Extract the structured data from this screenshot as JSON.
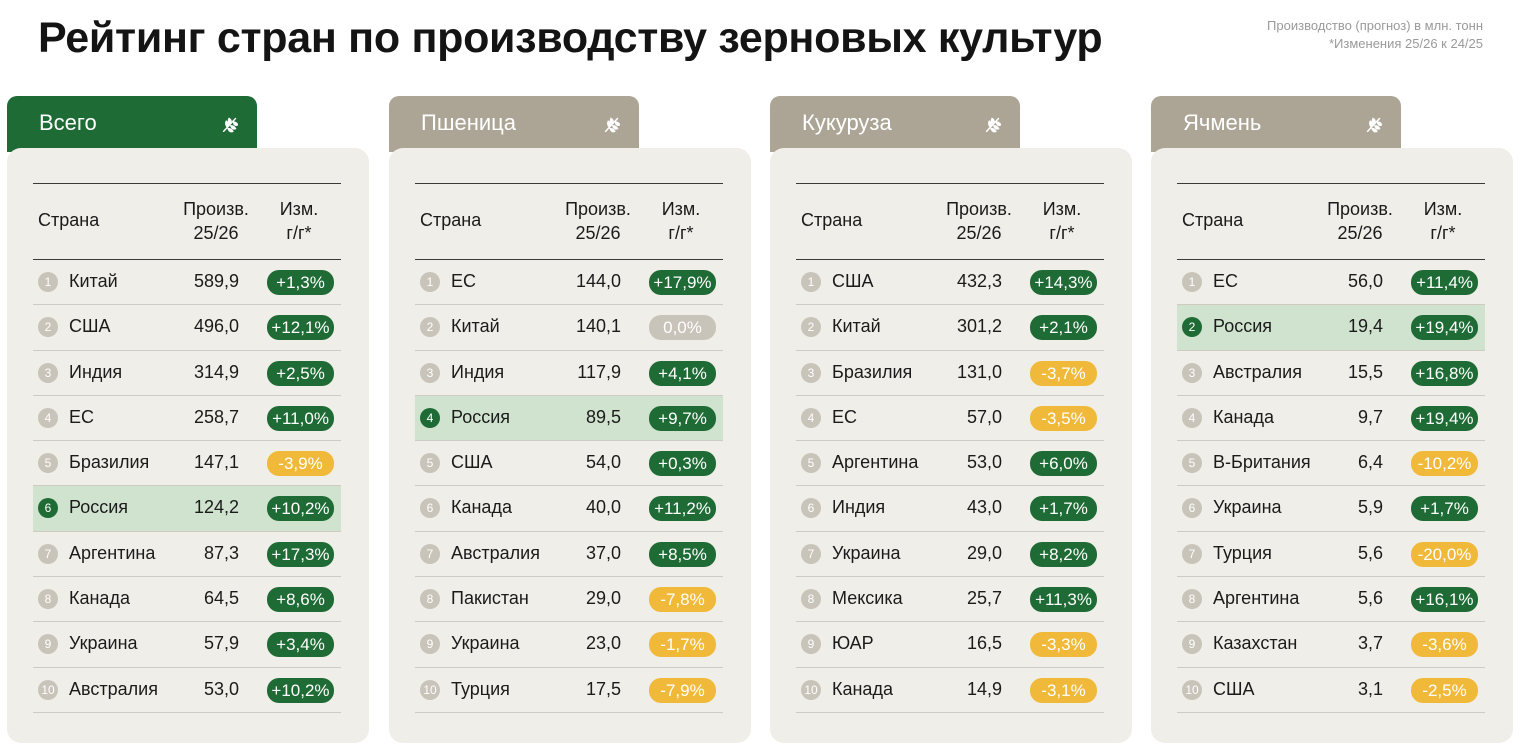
{
  "title": "Рейтинг стран по производству зерновых культур",
  "note": [
    "Производство (прогноз) в млн. тонн",
    "*Изменения 25/26 к 24/25"
  ],
  "header": {
    "country": "Страна",
    "prod_1": "Произв.",
    "prod_2": "25/26",
    "chg_1": "Изм.",
    "chg_2": "г/г*"
  },
  "colors": {
    "accent": "#1f6b35",
    "tab_grey": "#aca596",
    "negative": "#f0b93a",
    "neutral": "#c9c4b9",
    "highlight": "#cfe3cf"
  },
  "panels": [
    {
      "tab": "Всего",
      "tab_style": "green",
      "icon": "wheat-icon",
      "rows": [
        {
          "n": "1",
          "country": "Китай",
          "value": "589,9",
          "change": "+1,3%",
          "dir": "up"
        },
        {
          "n": "2",
          "country": "США",
          "value": "496,0",
          "change": "+12,1%",
          "dir": "up"
        },
        {
          "n": "3",
          "country": "Индия",
          "value": "314,9",
          "change": "+2,5%",
          "dir": "up"
        },
        {
          "n": "4",
          "country": "ЕС",
          "value": "258,7",
          "change": "+11,0%",
          "dir": "up"
        },
        {
          "n": "5",
          "country": "Бразилия",
          "value": "147,1",
          "change": "-3,9%",
          "dir": "down"
        },
        {
          "n": "6",
          "country": "Россия",
          "value": "124,2",
          "change": "+10,2%",
          "dir": "up",
          "highlight": true
        },
        {
          "n": "7",
          "country": "Аргентина",
          "value": "87,3",
          "change": "+17,3%",
          "dir": "up"
        },
        {
          "n": "8",
          "country": "Канада",
          "value": "64,5",
          "change": "+8,6%",
          "dir": "up"
        },
        {
          "n": "9",
          "country": "Украина",
          "value": "57,9",
          "change": "+3,4%",
          "dir": "up"
        },
        {
          "n": "10",
          "country": "Австралия",
          "value": "53,0",
          "change": "+10,2%",
          "dir": "up"
        }
      ]
    },
    {
      "tab": "Пшеница",
      "tab_style": "grey",
      "icon": "wheat-icon",
      "rows": [
        {
          "n": "1",
          "country": "ЕС",
          "value": "144,0",
          "change": "+17,9%",
          "dir": "up"
        },
        {
          "n": "2",
          "country": "Китай",
          "value": "140,1",
          "change": "0,0%",
          "dir": "zero"
        },
        {
          "n": "3",
          "country": "Индия",
          "value": "117,9",
          "change": "+4,1%",
          "dir": "up"
        },
        {
          "n": "4",
          "country": "Россия",
          "value": "89,5",
          "change": "+9,7%",
          "dir": "up",
          "highlight": true
        },
        {
          "n": "5",
          "country": "США",
          "value": "54,0",
          "change": "+0,3%",
          "dir": "up"
        },
        {
          "n": "6",
          "country": "Канада",
          "value": "40,0",
          "change": "+11,2%",
          "dir": "up"
        },
        {
          "n": "7",
          "country": "Австралия",
          "value": "37,0",
          "change": "+8,5%",
          "dir": "up"
        },
        {
          "n": "8",
          "country": "Пакистан",
          "value": "29,0",
          "change": "-7,8%",
          "dir": "down"
        },
        {
          "n": "9",
          "country": "Украина",
          "value": "23,0",
          "change": "-1,7%",
          "dir": "down"
        },
        {
          "n": "10",
          "country": "Турция",
          "value": "17,5",
          "change": "-7,9%",
          "dir": "down"
        }
      ]
    },
    {
      "tab": "Кукуруза",
      "tab_style": "grey",
      "icon": "corn-icon",
      "rows": [
        {
          "n": "1",
          "country": "США",
          "value": "432,3",
          "change": "+14,3%",
          "dir": "up"
        },
        {
          "n": "2",
          "country": "Китай",
          "value": "301,2",
          "change": "+2,1%",
          "dir": "up"
        },
        {
          "n": "3",
          "country": "Бразилия",
          "value": "131,0",
          "change": "-3,7%",
          "dir": "down"
        },
        {
          "n": "4",
          "country": "ЕС",
          "value": "57,0",
          "change": "-3,5%",
          "dir": "down"
        },
        {
          "n": "5",
          "country": "Аргентина",
          "value": "53,0",
          "change": "+6,0%",
          "dir": "up"
        },
        {
          "n": "6",
          "country": "Индия",
          "value": "43,0",
          "change": "+1,7%",
          "dir": "up"
        },
        {
          "n": "7",
          "country": "Украина",
          "value": "29,0",
          "change": "+8,2%",
          "dir": "up"
        },
        {
          "n": "8",
          "country": "Мексика",
          "value": "25,7",
          "change": "+11,3%",
          "dir": "up"
        },
        {
          "n": "9",
          "country": "ЮАР",
          "value": "16,5",
          "change": "-3,3%",
          "dir": "down"
        },
        {
          "n": "10",
          "country": "Канада",
          "value": "14,9",
          "change": "-3,1%",
          "dir": "down"
        }
      ]
    },
    {
      "tab": "Ячмень",
      "tab_style": "grey",
      "icon": "barley-icon",
      "rows": [
        {
          "n": "1",
          "country": "ЕС",
          "value": "56,0",
          "change": "+11,4%",
          "dir": "up"
        },
        {
          "n": "2",
          "country": "Россия",
          "value": "19,4",
          "change": "+19,4%",
          "dir": "up",
          "highlight": true
        },
        {
          "n": "3",
          "country": "Австралия",
          "value": "15,5",
          "change": "+16,8%",
          "dir": "up"
        },
        {
          "n": "4",
          "country": "Канада",
          "value": "9,7",
          "change": "+19,4%",
          "dir": "up"
        },
        {
          "n": "5",
          "country": "В-Британия",
          "value": "6,4",
          "change": "-10,2%",
          "dir": "down"
        },
        {
          "n": "6",
          "country": "Украина",
          "value": "5,9",
          "change": "+1,7%",
          "dir": "up"
        },
        {
          "n": "7",
          "country": "Турция",
          "value": "5,6",
          "change": "-20,0%",
          "dir": "down"
        },
        {
          "n": "8",
          "country": "Аргентина",
          "value": "5,6",
          "change": "+16,1%",
          "dir": "up"
        },
        {
          "n": "9",
          "country": "Казахстан",
          "value": "3,7",
          "change": "-3,6%",
          "dir": "down"
        },
        {
          "n": "10",
          "country": "США",
          "value": "3,1",
          "change": "-2,5%",
          "dir": "down"
        }
      ]
    }
  ]
}
